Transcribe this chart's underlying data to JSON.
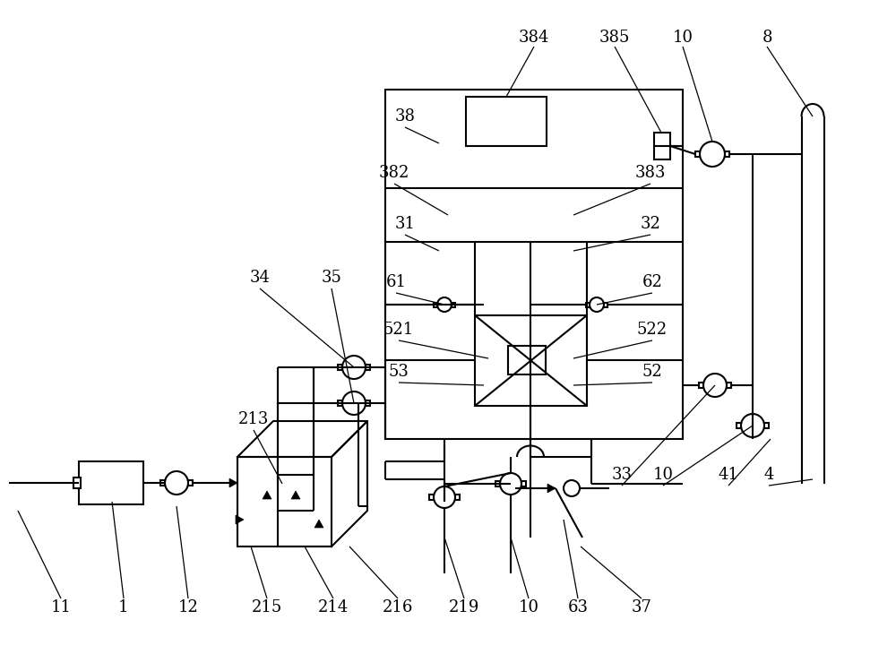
{
  "bg": "#ffffff",
  "lc": "#000000",
  "lw": 1.5,
  "thin": 0.9,
  "fs": 13
}
